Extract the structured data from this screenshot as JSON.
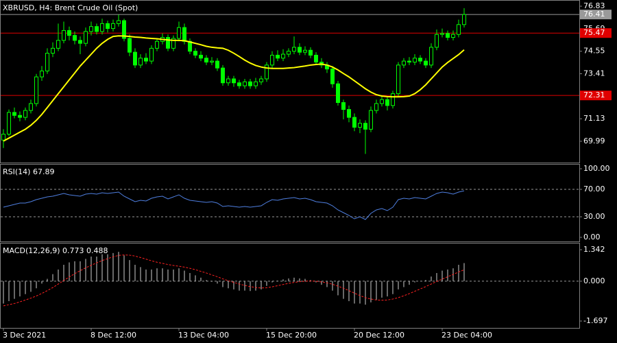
{
  "chart_data": [
    {
      "type": "candlestick",
      "title": "XBRUSD, H4:  Brent Crude Oil (Spot)",
      "categories": [
        "3 Dec 2021",
        null,
        null,
        null,
        null,
        null,
        null,
        null,
        null,
        null,
        null,
        null,
        null,
        null,
        null,
        null,
        "8 Dec 12:00",
        null,
        null,
        null,
        null,
        null,
        null,
        null,
        null,
        null,
        null,
        null,
        null,
        null,
        null,
        null,
        "13 Dec 04:00",
        null,
        null,
        null,
        null,
        null,
        null,
        null,
        null,
        null,
        null,
        null,
        null,
        null,
        null,
        null,
        "15 Dec 20:00",
        null,
        null,
        null,
        null,
        null,
        null,
        null,
        null,
        null,
        null,
        null,
        null,
        null,
        null,
        null,
        "20 Dec 12:00",
        null,
        null,
        null,
        null,
        null,
        null,
        null,
        null,
        null,
        null,
        null,
        null,
        null,
        null,
        null,
        "23 Dec 04:00",
        null,
        null,
        null,
        null
      ],
      "open": [
        70.05,
        70.35,
        71.45,
        71.3,
        71.2,
        71.55,
        71.9,
        73.25,
        73.55,
        74.45,
        74.7,
        75.1,
        75.6,
        75.35,
        75.1,
        74.95,
        75.55,
        75.8,
        75.55,
        75.95,
        75.7,
        75.95,
        76.1,
        75.2,
        74.5,
        73.85,
        74.2,
        74.05,
        74.7,
        75.05,
        75.25,
        74.7,
        75.2,
        75.75,
        75.05,
        74.55,
        74.35,
        74.2,
        74.0,
        74.05,
        73.7,
        72.95,
        73.15,
        72.95,
        72.8,
        73.0,
        72.8,
        73.0,
        73.15,
        73.85,
        74.35,
        74.2,
        74.4,
        74.55,
        74.75,
        74.5,
        74.6,
        74.35,
        74.0,
        73.85,
        73.65,
        72.9,
        71.95,
        71.6,
        71.2,
        70.7,
        70.9,
        70.6,
        71.55,
        71.9,
        72.1,
        71.8,
        72.4,
        73.85,
        74.05,
        74.0,
        74.2,
        74.05,
        73.85,
        74.75,
        75.4,
        75.45,
        75.25,
        75.4,
        75.9
      ],
      "high": [
        70.6,
        71.6,
        71.7,
        71.5,
        71.7,
        72.1,
        73.4,
        73.8,
        74.7,
        75.0,
        75.95,
        76.05,
        75.8,
        75.55,
        75.3,
        75.75,
        76.05,
        75.95,
        76.2,
        76.1,
        76.15,
        76.4,
        76.2,
        75.4,
        74.7,
        74.4,
        74.45,
        74.85,
        75.2,
        75.45,
        75.4,
        75.35,
        76.05,
        75.95,
        75.2,
        74.7,
        74.55,
        74.35,
        74.25,
        74.2,
        73.85,
        73.3,
        73.3,
        73.1,
        73.15,
        73.15,
        73.2,
        73.3,
        74.0,
        74.55,
        74.6,
        74.65,
        74.7,
        75.3,
        74.95,
        74.8,
        74.75,
        74.5,
        74.2,
        74.0,
        73.8,
        73.05,
        72.1,
        71.8,
        71.4,
        71.1,
        71.05,
        71.75,
        72.1,
        72.3,
        72.25,
        72.55,
        74.0,
        74.2,
        74.25,
        74.4,
        74.35,
        74.2,
        74.95,
        75.65,
        75.7,
        75.6,
        75.6,
        76.15,
        76.73
      ],
      "low": [
        69.65,
        70.25,
        71.15,
        71.0,
        71.05,
        71.4,
        71.75,
        73.05,
        73.4,
        74.25,
        74.55,
        74.95,
        75.1,
        74.9,
        74.4,
        74.8,
        75.35,
        75.4,
        75.4,
        75.5,
        75.55,
        75.8,
        75.05,
        74.3,
        73.7,
        73.7,
        73.9,
        73.9,
        74.55,
        74.9,
        74.55,
        74.55,
        75.05,
        74.9,
        74.4,
        74.2,
        74.05,
        73.85,
        73.85,
        73.55,
        72.8,
        72.8,
        72.75,
        72.65,
        72.65,
        72.65,
        72.65,
        72.85,
        73.0,
        73.7,
        74.05,
        74.05,
        74.25,
        74.4,
        74.35,
        74.35,
        74.2,
        73.85,
        73.7,
        73.45,
        72.7,
        71.8,
        71.1,
        70.95,
        70.5,
        70.4,
        69.35,
        70.45,
        71.4,
        71.75,
        71.55,
        71.65,
        72.25,
        73.7,
        73.85,
        73.85,
        73.9,
        73.7,
        73.7,
        74.6,
        75.25,
        75.1,
        75.1,
        75.25,
        75.75
      ],
      "close": [
        70.35,
        71.45,
        71.3,
        71.2,
        71.55,
        71.9,
        73.25,
        73.55,
        74.45,
        74.7,
        75.1,
        75.6,
        75.35,
        75.1,
        74.95,
        75.55,
        75.8,
        75.55,
        75.95,
        75.7,
        75.95,
        76.1,
        75.2,
        74.5,
        73.85,
        74.2,
        74.05,
        74.7,
        75.05,
        75.25,
        74.7,
        75.2,
        75.75,
        75.05,
        74.55,
        74.35,
        74.2,
        74.0,
        74.05,
        73.7,
        72.95,
        73.15,
        72.95,
        72.8,
        73.0,
        72.8,
        73.0,
        73.15,
        73.85,
        74.35,
        74.2,
        74.4,
        74.55,
        74.75,
        74.5,
        74.6,
        74.35,
        74.0,
        73.85,
        73.65,
        72.9,
        71.95,
        71.6,
        71.2,
        70.7,
        70.9,
        70.6,
        71.55,
        71.9,
        72.1,
        71.8,
        72.4,
        73.85,
        74.05,
        74.0,
        74.2,
        74.05,
        73.85,
        74.75,
        75.4,
        75.45,
        75.25,
        75.4,
        75.9,
        76.41
      ],
      "up_color": "#00ff00",
      "down_color": "#00ff00",
      "series": [
        {
          "color": "#ffff00",
          "values": [
            70.0,
            70.15,
            70.3,
            70.45,
            70.6,
            70.8,
            71.05,
            71.35,
            71.7,
            72.05,
            72.4,
            72.75,
            73.1,
            73.45,
            73.8,
            74.1,
            74.4,
            74.7,
            74.95,
            75.15,
            75.3,
            75.33,
            75.32,
            75.3,
            75.27,
            75.25,
            75.22,
            75.2,
            75.18,
            75.15,
            75.12,
            75.1,
            75.1,
            75.08,
            75.02,
            74.95,
            74.88,
            74.8,
            74.75,
            74.72,
            74.7,
            74.6,
            74.45,
            74.28,
            74.1,
            73.95,
            73.83,
            73.75,
            73.7,
            73.68,
            73.68,
            73.68,
            73.7,
            73.72,
            73.76,
            73.8,
            73.85,
            73.88,
            73.9,
            73.85,
            73.75,
            73.6,
            73.42,
            73.25,
            73.05,
            72.85,
            72.65,
            72.48,
            72.35,
            72.28,
            72.25,
            72.24,
            72.24,
            72.25,
            72.28,
            72.4,
            72.6,
            72.85,
            73.15,
            73.45,
            73.75,
            73.98,
            74.18,
            74.38,
            74.62
          ]
        }
      ],
      "levels": [
        {
          "value": 76.41,
          "color": "#9a9a9a"
        },
        {
          "value": 75.47,
          "color": "#e00000"
        },
        {
          "value": 72.31,
          "color": "#e00000"
        }
      ],
      "ylim": [
        68.91,
        77.11
      ],
      "yticks": [
        76.83,
        75.69,
        74.55,
        73.41,
        71.13,
        69.99
      ]
    },
    {
      "type": "line",
      "title": "RSI(14) 67.89",
      "series": [
        {
          "color": "#4f7fe0",
          "values": [
            44,
            46,
            48,
            50,
            50,
            52,
            55,
            57,
            59,
            60,
            62,
            64,
            62,
            61,
            60,
            63,
            64,
            63,
            65,
            64,
            65,
            66,
            60,
            56,
            52,
            54,
            53,
            57,
            59,
            60,
            56,
            59,
            62,
            57,
            54,
            53,
            52,
            51,
            52,
            50,
            45,
            46,
            45,
            44,
            45,
            44,
            45,
            46,
            51,
            55,
            54,
            56,
            57,
            58,
            56,
            57,
            55,
            52,
            51,
            50,
            46,
            40,
            36,
            32,
            27,
            30,
            26,
            35,
            40,
            42,
            39,
            44,
            55,
            57,
            56,
            58,
            57,
            56,
            60,
            64,
            66,
            65,
            63,
            66,
            67.89
          ]
        }
      ],
      "levels": [
        70,
        30
      ],
      "ylim": [
        -6,
        106
      ],
      "yticks": [
        {
          "value": 100,
          "label": "100.00"
        },
        {
          "value": 70,
          "label": "70.00"
        },
        {
          "value": 30,
          "label": "30.00"
        },
        {
          "value": 0,
          "label": "0.00"
        }
      ]
    },
    {
      "type": "macd",
      "title": "MACD(12,26,9) 0.773 0.488",
      "series": [
        {
          "type": "bar",
          "color": "#d0d0d0",
          "values": [
            -0.95,
            -0.85,
            -0.75,
            -0.65,
            -0.55,
            -0.45,
            -0.3,
            -0.1,
            0.1,
            0.3,
            0.5,
            0.7,
            0.8,
            0.85,
            0.85,
            0.95,
            1.05,
            1.05,
            1.15,
            1.15,
            1.2,
            1.25,
            1.1,
            0.9,
            0.7,
            0.6,
            0.5,
            0.5,
            0.55,
            0.55,
            0.5,
            0.5,
            0.55,
            0.45,
            0.35,
            0.25,
            0.15,
            0.05,
            -0.02,
            -0.1,
            -0.25,
            -0.3,
            -0.35,
            -0.4,
            -0.4,
            -0.42,
            -0.4,
            -0.35,
            -0.2,
            -0.05,
            0.02,
            0.08,
            0.12,
            0.15,
            0.12,
            0.1,
            0.05,
            -0.05,
            -0.15,
            -0.25,
            -0.4,
            -0.6,
            -0.75,
            -0.85,
            -0.95,
            -0.95,
            -1.0,
            -0.9,
            -0.8,
            -0.7,
            -0.65,
            -0.55,
            -0.35,
            -0.25,
            -0.15,
            -0.05,
            0.0,
            0.05,
            0.2,
            0.35,
            0.45,
            0.5,
            0.55,
            0.7,
            0.773
          ]
        },
        {
          "type": "line",
          "color": "#ff2020",
          "dash": true,
          "values": [
            -1.05,
            -1.0,
            -0.95,
            -0.88,
            -0.8,
            -0.72,
            -0.63,
            -0.52,
            -0.4,
            -0.27,
            -0.12,
            0.03,
            0.18,
            0.32,
            0.45,
            0.57,
            0.68,
            0.78,
            0.88,
            0.96,
            1.04,
            1.1,
            1.12,
            1.11,
            1.07,
            1.01,
            0.94,
            0.87,
            0.81,
            0.76,
            0.71,
            0.67,
            0.64,
            0.6,
            0.55,
            0.49,
            0.42,
            0.35,
            0.27,
            0.19,
            0.1,
            0.02,
            -0.05,
            -0.12,
            -0.18,
            -0.23,
            -0.27,
            -0.29,
            -0.28,
            -0.24,
            -0.19,
            -0.14,
            -0.09,
            -0.05,
            -0.02,
            0.0,
            0.01,
            0.0,
            -0.03,
            -0.07,
            -0.13,
            -0.21,
            -0.3,
            -0.4,
            -0.51,
            -0.61,
            -0.7,
            -0.76,
            -0.8,
            -0.81,
            -0.8,
            -0.76,
            -0.7,
            -0.62,
            -0.53,
            -0.43,
            -0.33,
            -0.23,
            -0.12,
            -0.01,
            0.09,
            0.19,
            0.29,
            0.39,
            0.488
          ]
        }
      ],
      "levels": [
        0
      ],
      "ylim": [
        -1.989,
        1.605
      ],
      "yticks": [
        1.342,
        {
          "value": 0,
          "label": "0.000"
        },
        -1.697
      ]
    }
  ]
}
